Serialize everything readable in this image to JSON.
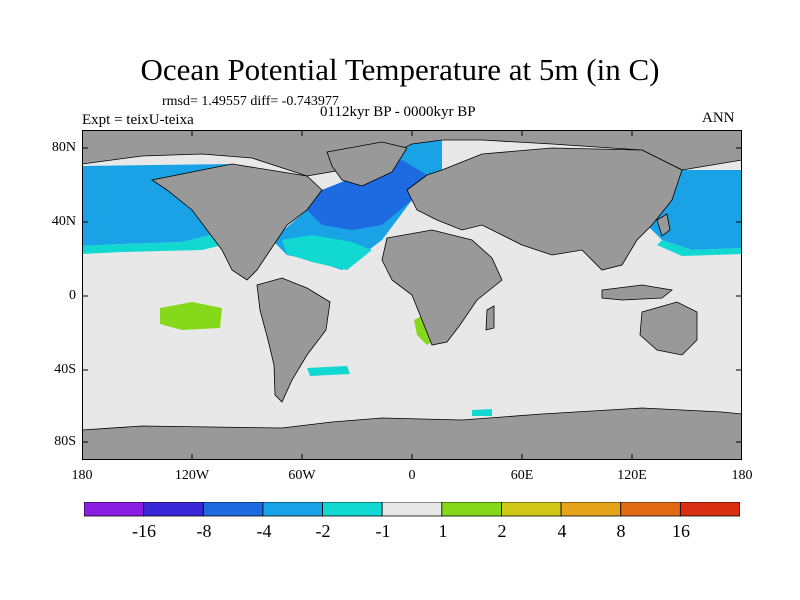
{
  "title": "Ocean Potential Temperature at 5m (in C)",
  "stats_label": "rmsd= 1.49557  diff= -0.743977",
  "experiment_label": "Expt = teixU-teixa",
  "period_label": "0112kyr BP - 0000kyr BP",
  "season_label": "ANN",
  "y_axis_labels": [
    "80N",
    "40N",
    "0",
    "40S",
    "80S"
  ],
  "x_axis_labels": [
    "180",
    "120W",
    "60W",
    "0",
    "60E",
    "120E",
    "180"
  ],
  "colorbar": {
    "labels": [
      "-16",
      "-8",
      "-4",
      "-2",
      "-1",
      "1",
      "2",
      "4",
      "8",
      "16"
    ],
    "colors": [
      "#8a1ee0",
      "#3a28d8",
      "#1e6ae0",
      "#1aa2e6",
      "#12d8d2",
      "#e8e8e8",
      "#86d81a",
      "#d2c818",
      "#e6a41a",
      "#e26a14",
      "#d82e12"
    ]
  },
  "map_colors": {
    "land": "#999999",
    "neutral_ocean": "#e8e8e8",
    "cool_moderate": "#1aa2e6",
    "cool_light": "#12d8d2",
    "cool_strong": "#1e6ae0",
    "warm_light": "#86d81a"
  }
}
